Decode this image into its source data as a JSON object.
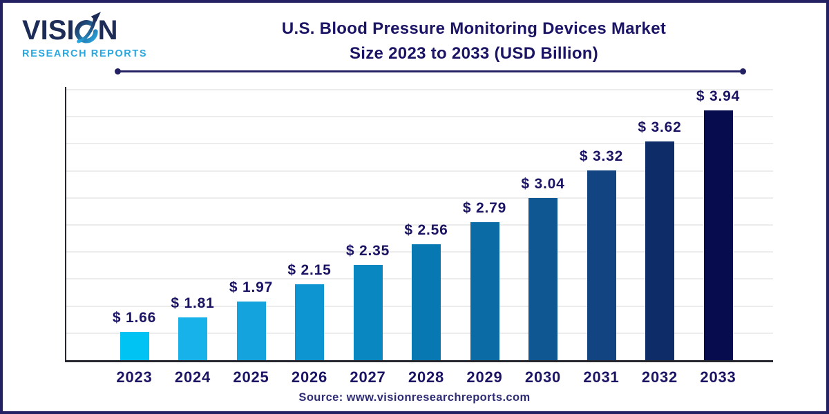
{
  "logo": {
    "brand_prefix": "VISI",
    "brand_suffix": "N",
    "tagline": "RESEARCH REPORTS",
    "navy": "#1D2B57",
    "cyan": "#29A8E0"
  },
  "title": {
    "line1": "U.S. Blood Pressure Monitoring Devices Market",
    "line2": "Size 2023 to 2033 (USD Billion)"
  },
  "source": {
    "text": "Source: www.visionresearchreports.com"
  },
  "colors": {
    "text_navy": "#1B1464",
    "border_navy": "#232063",
    "axis": "#26262E",
    "grid": "#ECECEC",
    "source_text": "#2E2C75"
  },
  "chart_data": {
    "type": "bar",
    "title": "U.S. Blood Pressure Monitoring Devices Market Size 2023 to 2033 (USD Billion)",
    "categories": [
      "2023",
      "2024",
      "2025",
      "2026",
      "2027",
      "2028",
      "2029",
      "2030",
      "2031",
      "2032",
      "2033"
    ],
    "values": [
      1.66,
      1.81,
      1.97,
      2.15,
      2.35,
      2.56,
      2.79,
      3.04,
      3.32,
      3.62,
      3.94
    ],
    "bar_labels": [
      "$ 1.66",
      "$ 1.81",
      "$ 1.97",
      "$ 2.15",
      "$ 2.35",
      "$ 2.56",
      "$ 2.79",
      "$ 3.04",
      "$ 3.32",
      "$ 3.62",
      "$ 3.94"
    ],
    "bar_colors": [
      "#00C3F4",
      "#18B2EA",
      "#14A3DC",
      "#0C95D0",
      "#0987C1",
      "#0878B3",
      "#0B6BA5",
      "#0F5792",
      "#114480",
      "#0E2D68",
      "#060C4E"
    ],
    "xlabel": "",
    "ylabel": "",
    "unit": "USD Billion",
    "ylim": [
      1.37,
      4.18
    ],
    "grid": true,
    "gridline_count": 10,
    "legend": false
  }
}
